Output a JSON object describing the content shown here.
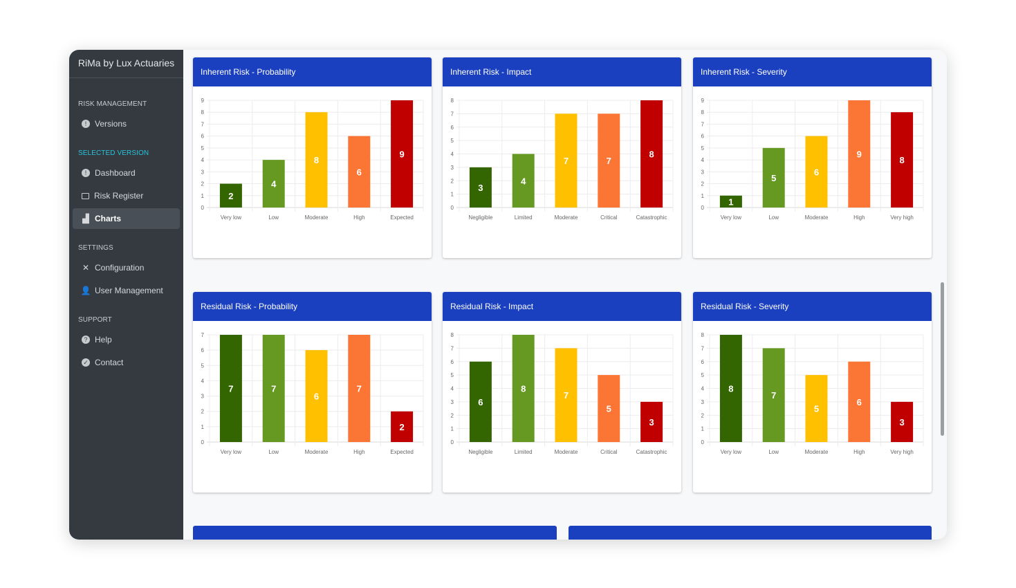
{
  "app": {
    "title": "RiMa  by Lux Actuaries"
  },
  "sidebar": {
    "sections": [
      {
        "label": "RISK MANAGEMENT",
        "items": [
          {
            "label": "Versions",
            "icon": "info-circle-icon"
          }
        ]
      },
      {
        "label": "SELECTED VERSION",
        "items": [
          {
            "label": "Dashboard",
            "icon": "info-circle-icon"
          },
          {
            "label": "Risk Register",
            "icon": "list-icon"
          },
          {
            "label": "Charts",
            "icon": "bar-chart-icon",
            "active": true
          }
        ]
      },
      {
        "label": "SETTINGS",
        "items": [
          {
            "label": "Configuration",
            "icon": "tools-icon"
          },
          {
            "label": "User Management",
            "icon": "user-gear-icon"
          }
        ]
      },
      {
        "label": "SUPPORT",
        "items": [
          {
            "label": "Help",
            "icon": "question-circle-icon"
          },
          {
            "label": "Contact",
            "icon": "check-circle-icon"
          }
        ]
      }
    ]
  },
  "colors": {
    "header": "#1a40bf",
    "bars": [
      "#336600",
      "#669922",
      "#ffc000",
      "#fb7634",
      "#c00000"
    ]
  },
  "chart_data": [
    {
      "type": "bar",
      "title": "Inherent Risk - Probability",
      "categories": [
        "Very low",
        "Low",
        "Moderate",
        "High",
        "Expected"
      ],
      "values": [
        2,
        4,
        8,
        6,
        9
      ],
      "ylim": [
        0,
        9
      ],
      "grid": true
    },
    {
      "type": "bar",
      "title": "Inherent Risk - Impact",
      "categories": [
        "Negligible",
        "Limited",
        "Moderate",
        "Critical",
        "Catastrophic"
      ],
      "values": [
        3,
        4,
        7,
        7,
        8
      ],
      "ylim": [
        0,
        8
      ],
      "grid": true
    },
    {
      "type": "bar",
      "title": "Inherent Risk - Severity",
      "categories": [
        "Very low",
        "Low",
        "Moderate",
        "High",
        "Very high"
      ],
      "values": [
        1,
        5,
        6,
        9,
        8
      ],
      "ylim": [
        0,
        9
      ],
      "grid": true
    },
    {
      "type": "bar",
      "title": "Residual Risk - Probability",
      "categories": [
        "Very low",
        "Low",
        "Moderate",
        "High",
        "Expected"
      ],
      "values": [
        7,
        7,
        6,
        7,
        2
      ],
      "ylim": [
        0,
        7
      ],
      "grid": true
    },
    {
      "type": "bar",
      "title": "Residual Risk - Impact",
      "categories": [
        "Negligible",
        "Limited",
        "Moderate",
        "Critical",
        "Catastrophic"
      ],
      "values": [
        6,
        8,
        7,
        5,
        3
      ],
      "ylim": [
        0,
        8
      ],
      "grid": true
    },
    {
      "type": "bar",
      "title": "Residual Risk - Severity",
      "categories": [
        "Very low",
        "Low",
        "Moderate",
        "High",
        "Very high"
      ],
      "values": [
        8,
        7,
        5,
        6,
        3
      ],
      "ylim": [
        0,
        8
      ],
      "grid": true
    }
  ]
}
